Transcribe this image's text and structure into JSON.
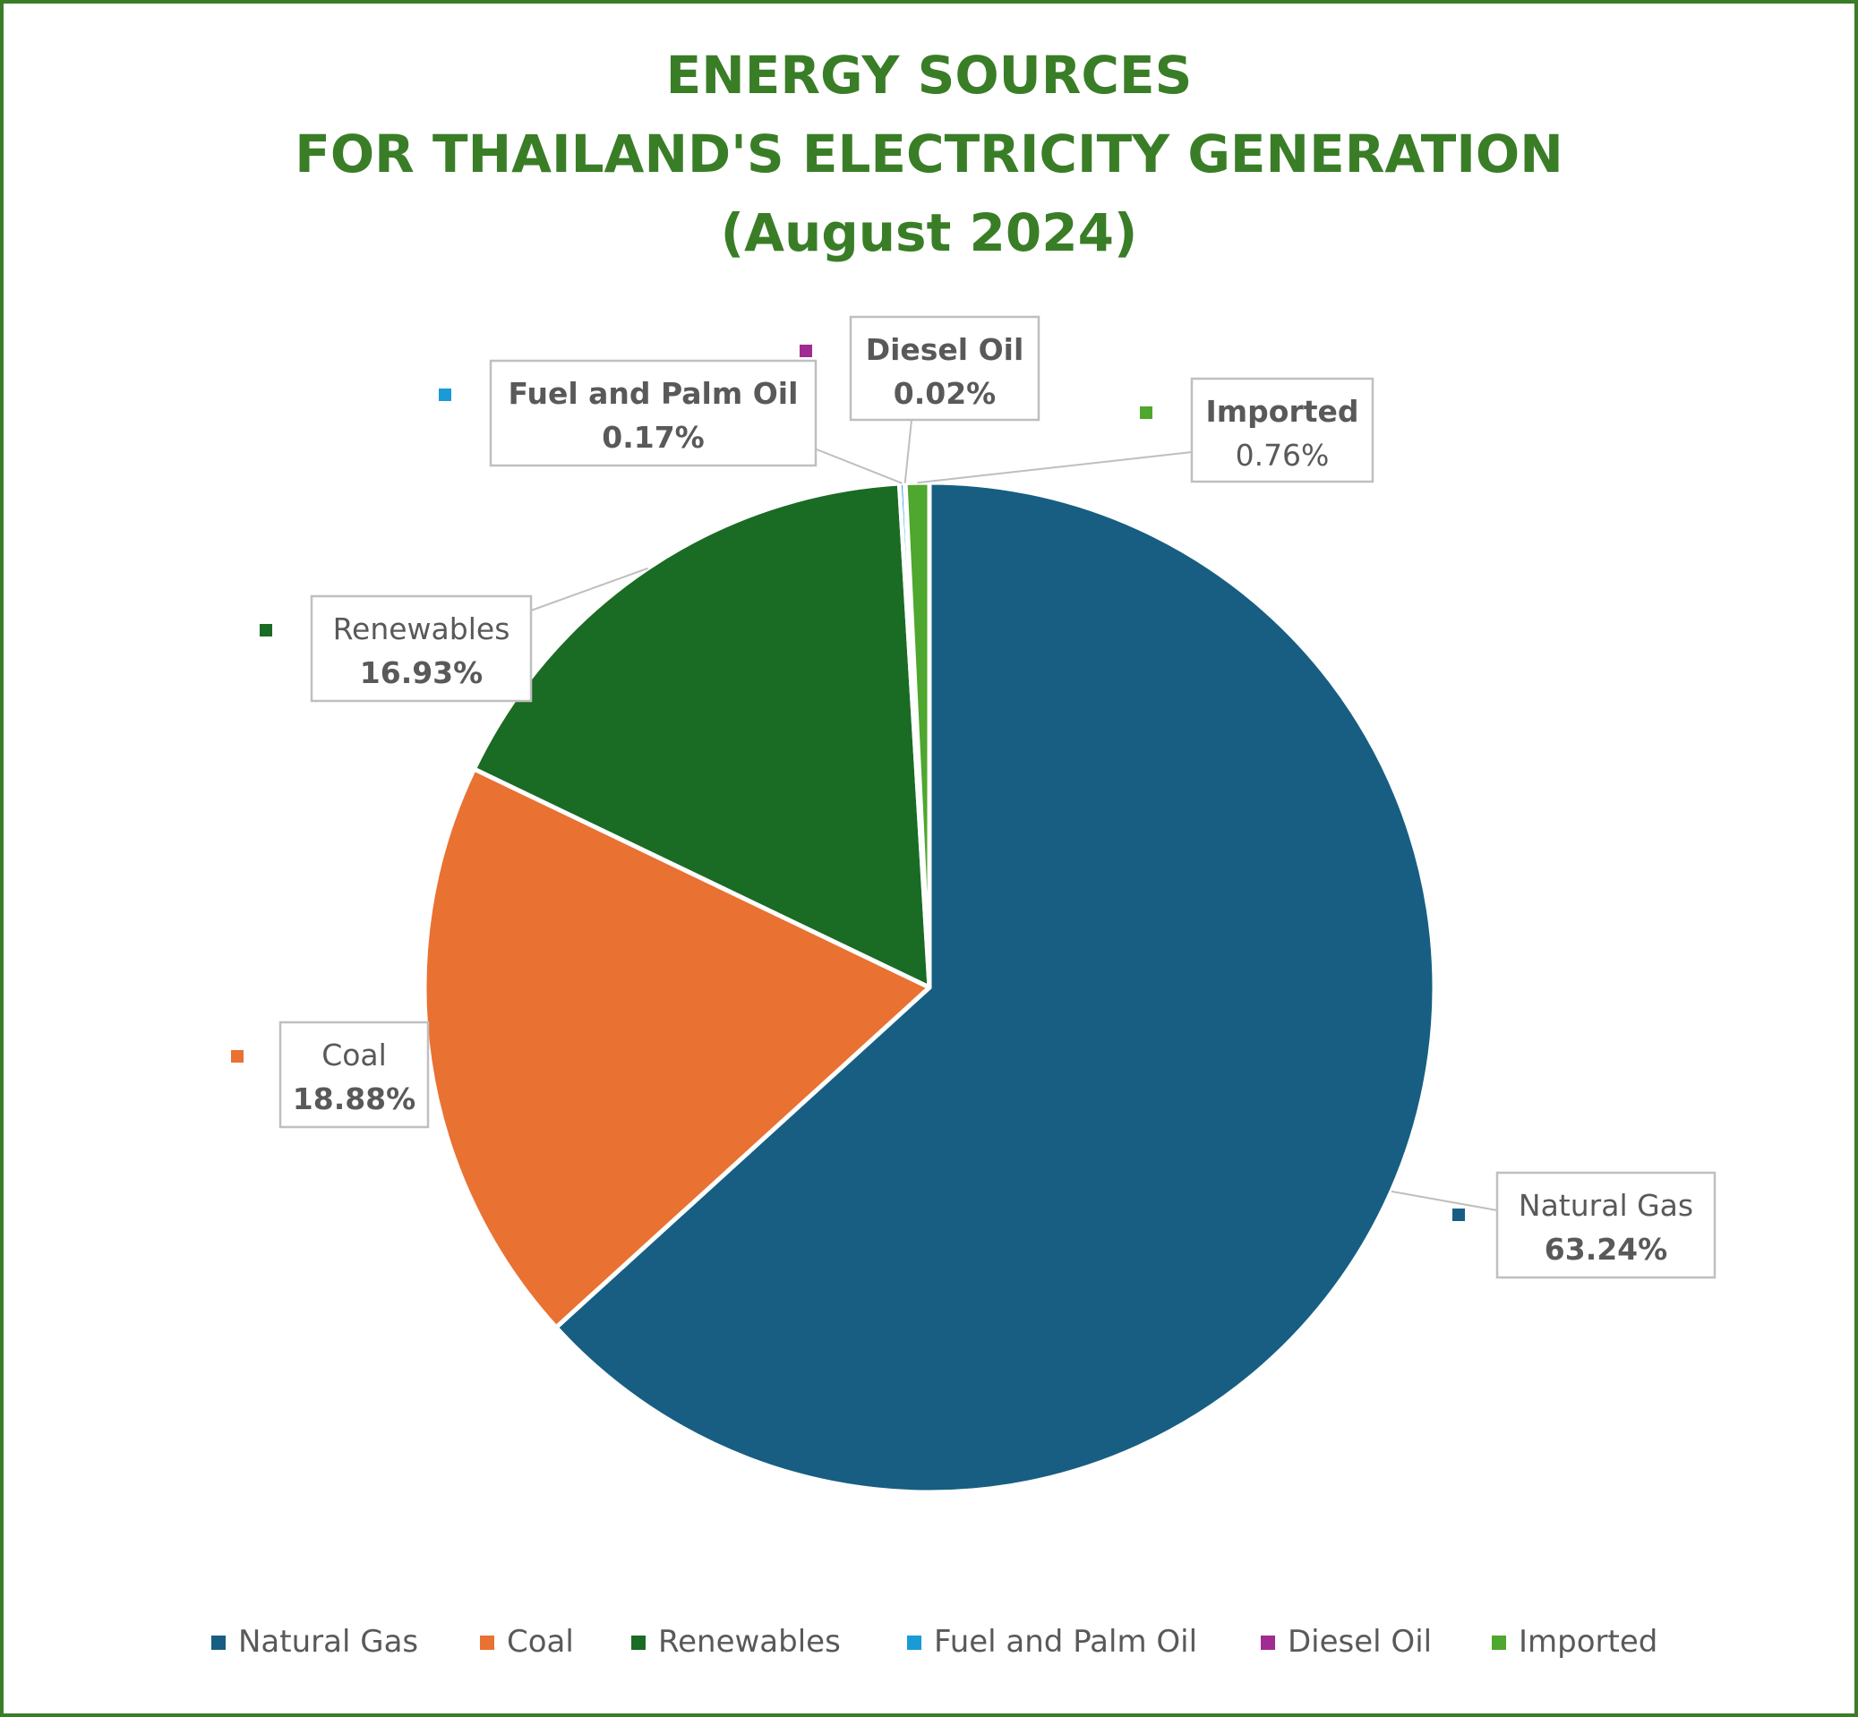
{
  "chart_data": {
    "type": "pie",
    "title_lines": [
      "ENERGY SOURCES",
      "FOR THAILAND'S ELECTRICITY GENERATION",
      "(August 2024)"
    ],
    "slices": [
      {
        "name": "Natural Gas",
        "value": 63.24,
        "label": "63.24%",
        "color": "#175e82",
        "name_bold": false,
        "value_bold": true
      },
      {
        "name": "Coal",
        "value": 18.88,
        "label": "18.88%",
        "color": "#e97132",
        "name_bold": false,
        "value_bold": true
      },
      {
        "name": "Renewables",
        "value": 16.93,
        "label": "16.93%",
        "color": "#1a6b24",
        "name_bold": false,
        "value_bold": true
      },
      {
        "name": "Fuel and Palm Oil",
        "value": 0.17,
        "label": "0.17%",
        "color": "#1a9bd7",
        "name_bold": true,
        "value_bold": true
      },
      {
        "name": "Diesel Oil",
        "value": 0.02,
        "label": "0.02%",
        "color": "#a02b93",
        "name_bold": true,
        "value_bold": true
      },
      {
        "name": "Imported",
        "value": 0.76,
        "label": "0.76%",
        "color": "#4ea72e",
        "name_bold": true,
        "value_bold": false
      }
    ],
    "legend_position": "bottom",
    "start_angle": "12 o'clock",
    "direction": "clockwise",
    "label_style": "callout boxes with leader lines",
    "title_color": "#3a7d27",
    "frame_color": "#3a7d27",
    "label_text_color": "#595959",
    "leader_line_color": "#bfbfbf"
  }
}
